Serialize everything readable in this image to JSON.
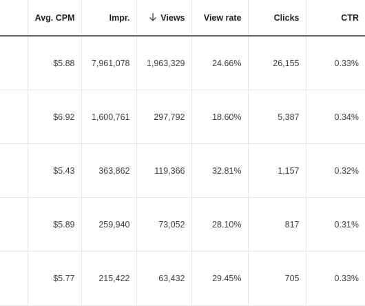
{
  "table": {
    "columns": [
      {
        "key": "blank",
        "label": ""
      },
      {
        "key": "avg_cpm",
        "label": "Avg. CPM"
      },
      {
        "key": "impr",
        "label": "Impr."
      },
      {
        "key": "views",
        "label": "Views",
        "sorted": "descending",
        "icon": "arrow-down-icon"
      },
      {
        "key": "view_rate",
        "label": "View rate"
      },
      {
        "key": "clicks",
        "label": "Clicks"
      },
      {
        "key": "ctr",
        "label": "CTR"
      }
    ],
    "rows": [
      {
        "avg_cpm": "$5.88",
        "impr": "7,961,078",
        "views": "1,963,329",
        "view_rate": "24.66%",
        "clicks": "26,155",
        "ctr": "0.33%"
      },
      {
        "avg_cpm": "$6.92",
        "impr": "1,600,761",
        "views": "297,792",
        "view_rate": "18.60%",
        "clicks": "5,387",
        "ctr": "0.34%"
      },
      {
        "avg_cpm": "$5.43",
        "impr": "363,862",
        "views": "119,366",
        "view_rate": "32.81%",
        "clicks": "1,157",
        "ctr": "0.32%"
      },
      {
        "avg_cpm": "$5.89",
        "impr": "259,940",
        "views": "73,052",
        "view_rate": "28.10%",
        "clicks": "817",
        "ctr": "0.31%"
      },
      {
        "avg_cpm": "$5.77",
        "impr": "215,422",
        "views": "63,432",
        "view_rate": "29.45%",
        "clicks": "705",
        "ctr": "0.33%"
      }
    ]
  },
  "colors": {
    "header_text": "#202124",
    "cell_text": "#3c4043",
    "grid_line": "#e6e6e6",
    "header_rule": "#5f6368"
  }
}
